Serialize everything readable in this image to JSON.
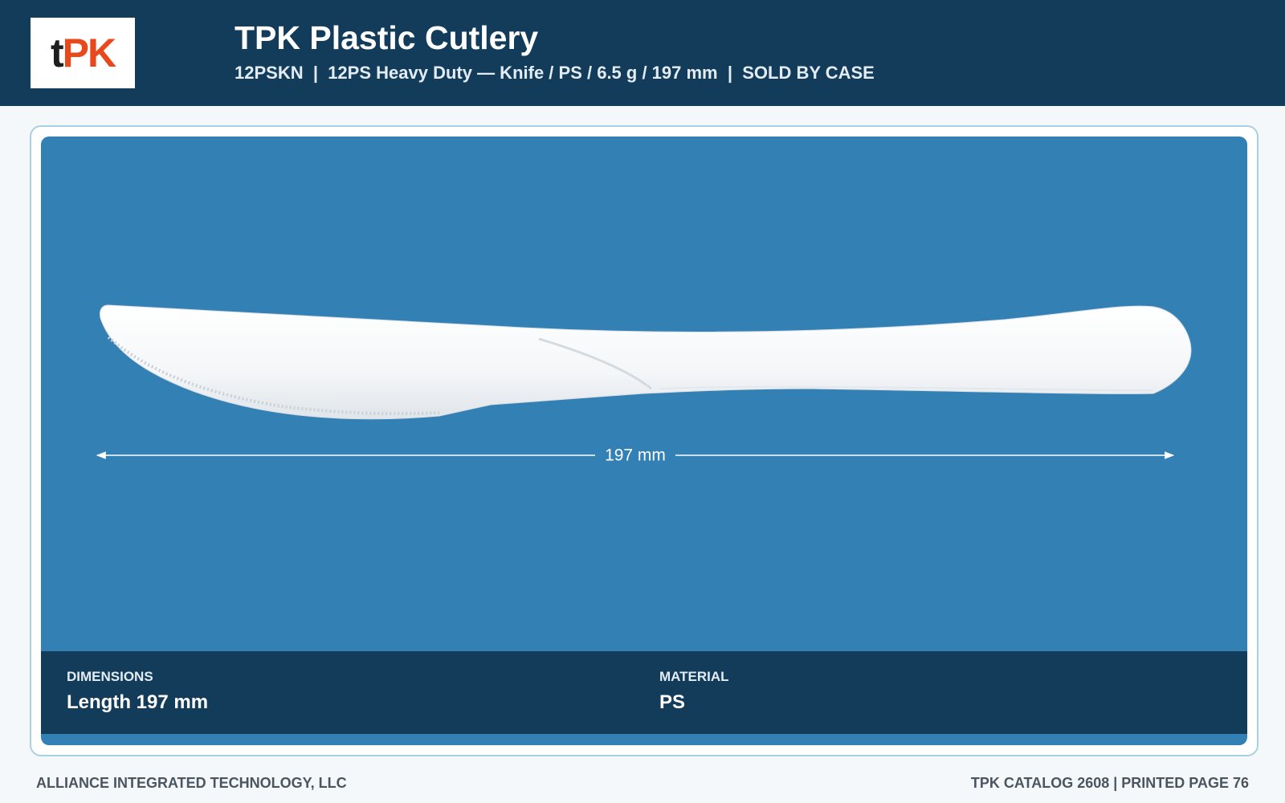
{
  "header": {
    "logo": [
      "t",
      "PK"
    ],
    "title": "TPK Plastic Cutlery",
    "subtitle": "12PSKN  |  12PS Heavy Duty — Knife / PS / 6.5 g / 197 mm  |  SOLD BY CASE"
  },
  "image": {
    "dimension_label": "197 mm"
  },
  "specs": [
    {
      "label": "DIMENSIONS",
      "value": "Length 197 mm"
    },
    {
      "label": "MATERIAL",
      "value": "PS"
    }
  ],
  "footer": {
    "left": "ALLIANCE INTEGRATED TECHNOLOGY, LLC",
    "right": "TPK CATALOG 2608 | PRINTED PAGE 76"
  }
}
